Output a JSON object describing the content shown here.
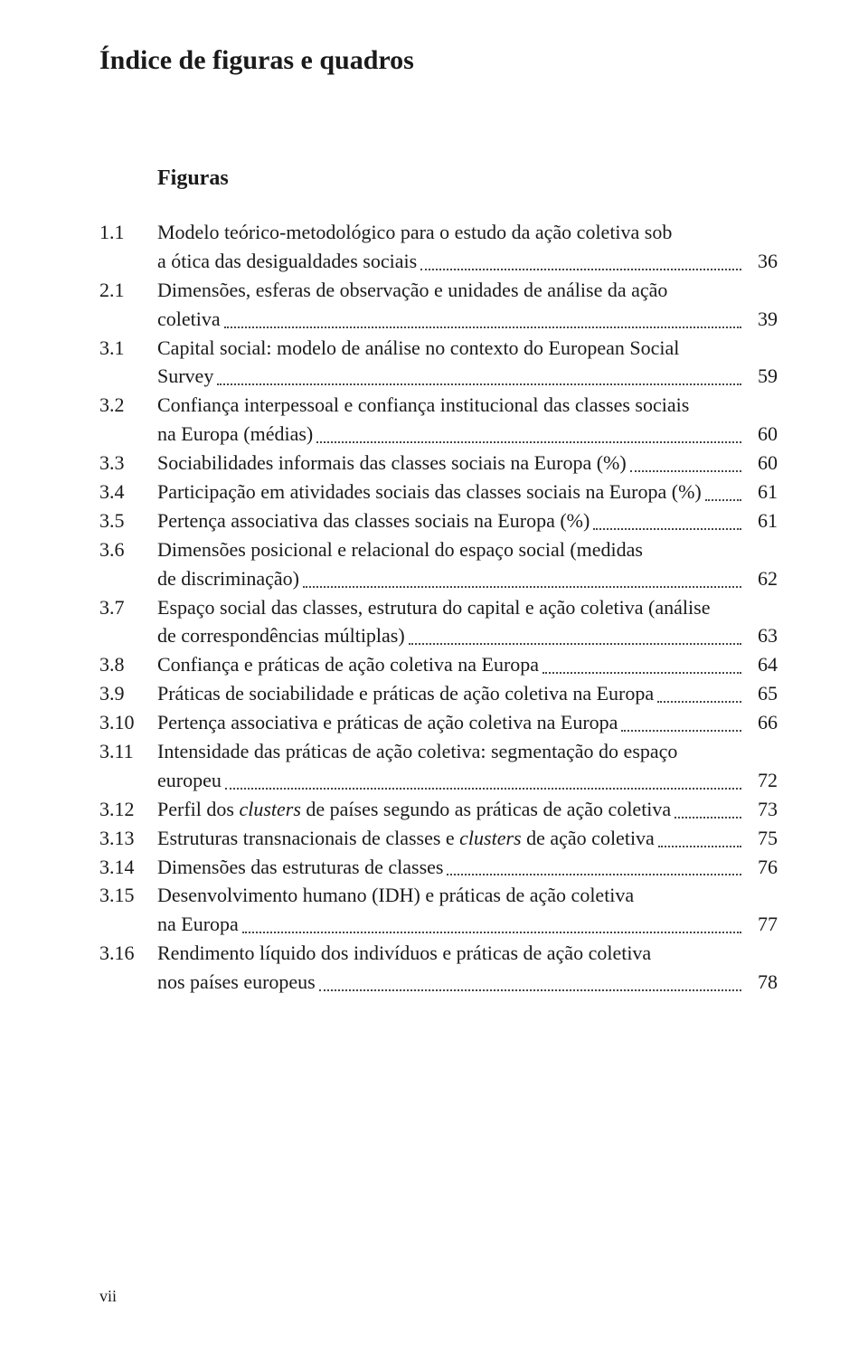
{
  "title": "Índice de figuras e quadros",
  "subtitle": "Figuras",
  "footer": "vii",
  "entries": [
    {
      "num": "1.1",
      "lines": [
        "Modelo teórico-metodológico para o estudo da ação coletiva sob",
        "a ótica das desigualdades sociais"
      ],
      "page": "36"
    },
    {
      "num": "2.1",
      "lines": [
        "Dimensões, esferas de observação e unidades de análise da ação",
        "coletiva"
      ],
      "page": "39"
    },
    {
      "num": "3.1",
      "lines": [
        "Capital social: modelo de análise no contexto do European Social",
        "Survey"
      ],
      "page": "59"
    },
    {
      "num": "3.2",
      "lines": [
        "Confiança interpessoal e confiança institucional das classes sociais",
        "na Europa (médias)"
      ],
      "page": "60"
    },
    {
      "num": "3.3",
      "lines": [
        "Sociabilidades informais das classes sociais na Europa (%)"
      ],
      "page": "60"
    },
    {
      "num": "3.4",
      "lines": [
        "Participação em atividades sociais das classes sociais na Europa (%)"
      ],
      "page": "61"
    },
    {
      "num": "3.5",
      "lines": [
        "Pertença associativa das classes sociais na Europa (%)"
      ],
      "page": "61"
    },
    {
      "num": "3.6",
      "lines": [
        "Dimensões posicional e relacional do espaço social (medidas",
        "de discriminação)"
      ],
      "page": "62"
    },
    {
      "num": "3.7",
      "lines": [
        "Espaço social das classes, estrutura do capital e ação coletiva (análise",
        "de correspondências múltiplas)"
      ],
      "page": "63"
    },
    {
      "num": "3.8",
      "lines": [
        "Confiança e práticas de ação coletiva na Europa"
      ],
      "page": "64"
    },
    {
      "num": "3.9",
      "lines": [
        "Práticas de sociabilidade e práticas de ação coletiva na Europa"
      ],
      "page": "65"
    },
    {
      "num": "3.10",
      "lines": [
        "Pertença associativa e práticas de ação coletiva na Europa"
      ],
      "page": "66"
    },
    {
      "num": "3.11",
      "lines": [
        "Intensidade das práticas de ação coletiva: segmentação do espaço",
        "europeu"
      ],
      "page": "72"
    },
    {
      "num": "3.12",
      "lines_html": [
        "Perfil dos <span class=\"italic\">clusters</span> de países segundo as práticas de ação coletiva"
      ],
      "page": "73"
    },
    {
      "num": "3.13",
      "lines_html": [
        "Estruturas transnacionais de classes e <span class=\"italic\">clusters</span> de ação coletiva"
      ],
      "page": "75"
    },
    {
      "num": "3.14",
      "lines": [
        "Dimensões das estruturas de classes"
      ],
      "page": "76"
    },
    {
      "num": "3.15",
      "lines": [
        "Desenvolvimento humano (IDH) e práticas de ação coletiva",
        "na Europa"
      ],
      "page": "77"
    },
    {
      "num": "3.16",
      "lines": [
        "Rendimento líquido dos indivíduos e práticas de ação coletiva",
        "nos países europeus"
      ],
      "page": "78"
    }
  ]
}
